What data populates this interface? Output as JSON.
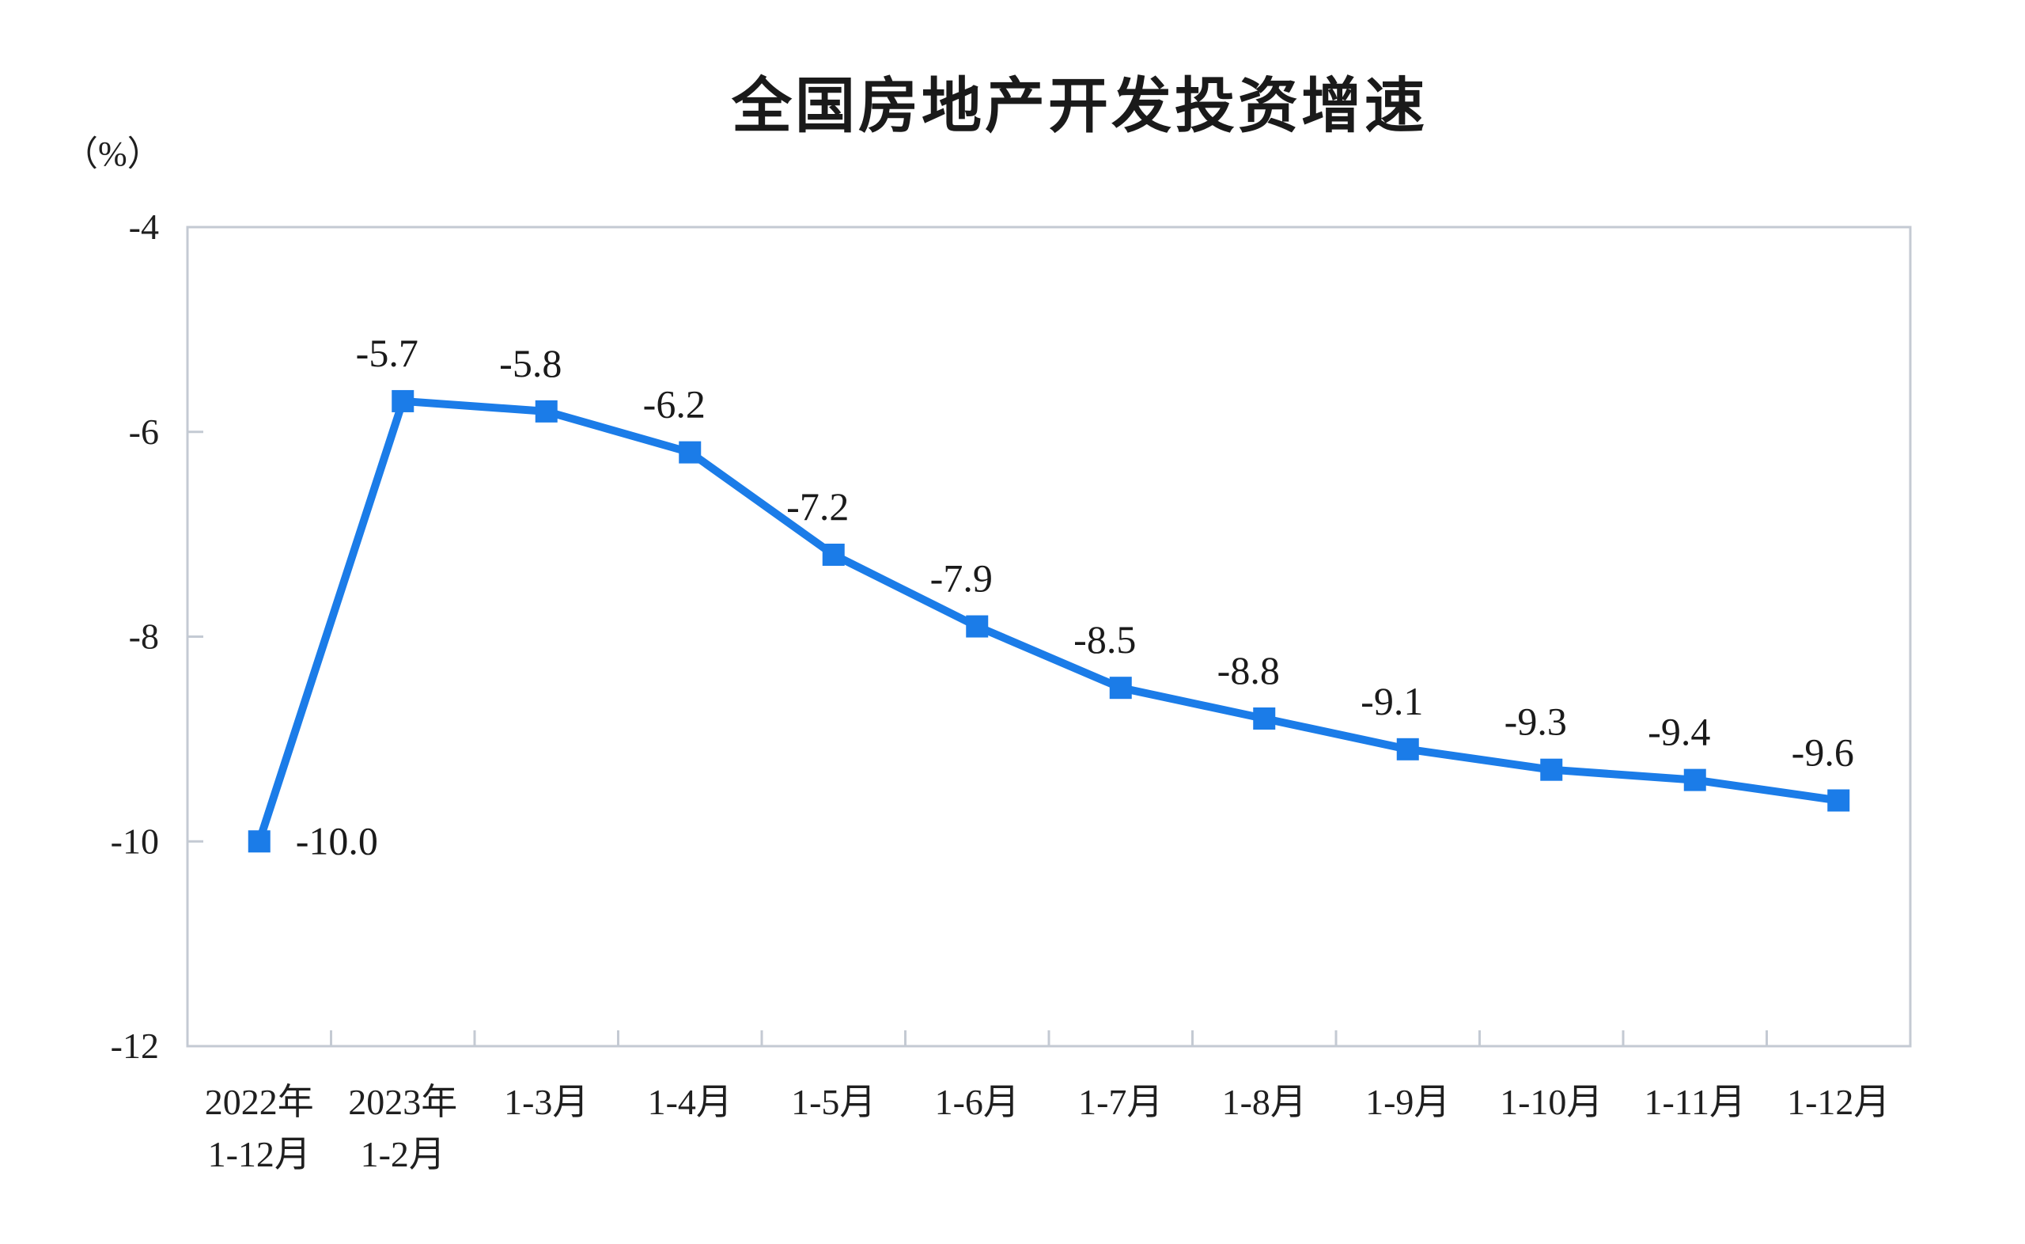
{
  "title": "全国房地产开发投资增速",
  "unit_label": "（%）",
  "colors": {
    "line": "#1b7ce8",
    "axis": "#c4cad3",
    "text": "#1f1f1f",
    "label": "#1a1a1a"
  },
  "chart_data": {
    "type": "line",
    "title": "全国房地产开发投资增速",
    "ylabel": "（%）",
    "categories": [
      [
        "2022年",
        "1-12月"
      ],
      [
        "2023年",
        "1-2月"
      ],
      [
        "1-3月"
      ],
      [
        "1-4月"
      ],
      [
        "1-5月"
      ],
      [
        "1-6月"
      ],
      [
        "1-7月"
      ],
      [
        "1-8月"
      ],
      [
        "1-9月"
      ],
      [
        "1-10月"
      ],
      [
        "1-11月"
      ],
      [
        "1-12月"
      ]
    ],
    "values": [
      -10.0,
      -5.7,
      -5.8,
      -6.2,
      -7.2,
      -7.9,
      -8.5,
      -8.8,
      -9.1,
      -9.3,
      -9.4,
      -9.6
    ],
    "data_labels": [
      "-10.0",
      "-5.7",
      "-5.8",
      "-6.2",
      "-7.2",
      "-7.9",
      "-8.5",
      "-8.8",
      "-9.1",
      "-9.3",
      "-9.4",
      "-9.6"
    ],
    "first_label_position": "right",
    "yticks": [
      -4,
      -6,
      -8,
      -10,
      -12
    ],
    "ylim": [
      -12,
      -4
    ],
    "grid": false,
    "legend": "none",
    "marker": "square",
    "line_color": "#1b7ce8"
  }
}
